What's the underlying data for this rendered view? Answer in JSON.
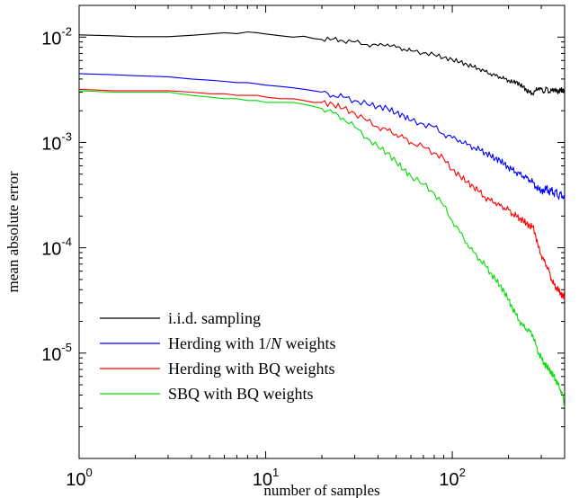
{
  "chart_data": {
    "type": "line",
    "xlabel": "number of samples",
    "ylabel": "mean absolute error",
    "x_scale": "log",
    "y_scale": "log",
    "xlim": [
      1,
      400
    ],
    "ylim": [
      1e-06,
      0.02
    ],
    "grid": false,
    "legend_position": "bottom-left",
    "x_ticks": [
      {
        "value": 1,
        "base": "10",
        "exp": "0"
      },
      {
        "value": 10,
        "base": "10",
        "exp": "1"
      },
      {
        "value": 100,
        "base": "10",
        "exp": "2"
      }
    ],
    "y_ticks": [
      {
        "value": 1e-05,
        "base": "10",
        "exp": "-5"
      },
      {
        "value": 0.0001,
        "base": "10",
        "exp": "-4"
      },
      {
        "value": 0.001,
        "base": "10",
        "exp": "-3"
      },
      {
        "value": 0.01,
        "base": "10",
        "exp": "-2"
      }
    ],
    "series": [
      {
        "name": "i.i.d. sampling",
        "color": "#000000",
        "x": [
          1,
          1.5,
          2,
          3,
          4,
          5,
          6,
          7,
          8,
          9,
          10,
          12,
          14,
          16,
          18,
          20,
          23,
          26,
          30,
          35,
          40,
          45,
          50,
          55,
          60,
          70,
          80,
          90,
          100,
          110,
          120,
          130,
          140,
          150,
          160,
          170,
          180,
          190,
          200,
          210,
          220,
          230,
          240,
          250,
          260,
          270,
          280,
          290,
          300,
          310,
          320,
          330,
          340,
          350,
          360,
          370,
          380,
          390,
          400
        ],
        "y": [
          0.0105,
          0.0103,
          0.0101,
          0.0101,
          0.0104,
          0.0107,
          0.011,
          0.0108,
          0.0112,
          0.011,
          0.0107,
          0.0103,
          0.01,
          0.0102,
          0.0097,
          0.0095,
          0.0096,
          0.0092,
          0.009,
          0.0085,
          0.0083,
          0.0086,
          0.008,
          0.0077,
          0.0074,
          0.0071,
          0.0068,
          0.0064,
          0.0061,
          0.0058,
          0.0055,
          0.0052,
          0.005,
          0.0047,
          0.0045,
          0.0043,
          0.0042,
          0.004,
          0.0039,
          0.0037,
          0.0038,
          0.0035,
          0.0034,
          0.0031,
          0.003,
          0.0029,
          0.0031,
          0.0033,
          0.0032,
          0.003,
          0.0033,
          0.003,
          0.0031,
          0.0032,
          0.0031,
          0.003,
          0.0032,
          0.0031,
          0.0031
        ]
      },
      {
        "name": "Herding with 1/N weights",
        "color": "#0000ff",
        "x": [
          1,
          1.5,
          2,
          3,
          4,
          5,
          6,
          7,
          8,
          9,
          10,
          12,
          14,
          16,
          18,
          20,
          23,
          26,
          30,
          35,
          40,
          45,
          50,
          55,
          60,
          70,
          80,
          90,
          100,
          110,
          120,
          130,
          140,
          150,
          160,
          170,
          180,
          190,
          200,
          210,
          220,
          230,
          240,
          250,
          260,
          270,
          280,
          290,
          300,
          310,
          320,
          330,
          340,
          350,
          360,
          370,
          380,
          390,
          400
        ],
        "y": [
          0.0045,
          0.0044,
          0.0043,
          0.0042,
          0.004,
          0.0039,
          0.0038,
          0.0037,
          0.0037,
          0.0036,
          0.0035,
          0.0034,
          0.0033,
          0.0032,
          0.0031,
          0.003,
          0.0028,
          0.0027,
          0.0025,
          0.0023,
          0.0022,
          0.0021,
          0.0019,
          0.0018,
          0.0016,
          0.0015,
          0.0014,
          0.0012,
          0.0011,
          0.00105,
          0.00095,
          0.0009,
          0.00085,
          0.0008,
          0.00075,
          0.0007,
          0.00068,
          0.00062,
          0.00058,
          0.00055,
          0.00052,
          0.0005,
          0.00048,
          0.00046,
          0.00044,
          0.00042,
          0.00038,
          0.00036,
          0.00035,
          0.00034,
          0.00038,
          0.00033,
          0.00036,
          0.00032,
          0.00035,
          0.0003,
          0.00033,
          0.00031,
          0.00029
        ]
      },
      {
        "name": "Herding with BQ weights",
        "color": "#ff0000",
        "x": [
          1,
          1.5,
          2,
          3,
          4,
          5,
          6,
          7,
          8,
          9,
          10,
          12,
          14,
          16,
          18,
          20,
          23,
          26,
          30,
          35,
          40,
          45,
          50,
          55,
          60,
          70,
          80,
          90,
          100,
          110,
          120,
          130,
          140,
          150,
          160,
          170,
          180,
          190,
          200,
          210,
          220,
          230,
          240,
          250,
          260,
          270,
          280,
          290,
          300,
          310,
          320,
          330,
          340,
          350,
          360,
          370,
          380,
          390,
          400
        ],
        "y": [
          0.0032,
          0.0031,
          0.0031,
          0.0031,
          0.003,
          0.0029,
          0.0029,
          0.0028,
          0.0028,
          0.0028,
          0.0027,
          0.0026,
          0.0026,
          0.0025,
          0.0024,
          0.0024,
          0.0023,
          0.0021,
          0.0019,
          0.0016,
          0.0014,
          0.0013,
          0.0012,
          0.0011,
          0.001,
          0.0009,
          0.0008,
          0.0007,
          0.00055,
          0.00048,
          0.00042,
          0.00038,
          0.00034,
          0.0003,
          0.00028,
          0.00027,
          0.00025,
          0.00024,
          0.00023,
          0.00021,
          0.0002,
          0.00019,
          0.00018,
          0.00017,
          0.00016,
          0.00016,
          0.00013,
          0.0001,
          8.5e-05,
          7.5e-05,
          6.8e-05,
          6e-05,
          5e-05,
          4.5e-05,
          4.2e-05,
          4e-05,
          3.7e-05,
          3.5e-05,
          3.4e-05
        ]
      },
      {
        "name": "SBQ with BQ weights",
        "color": "#00dd00",
        "x": [
          1,
          1.5,
          2,
          3,
          4,
          5,
          6,
          7,
          8,
          9,
          10,
          12,
          14,
          16,
          18,
          20,
          23,
          26,
          30,
          35,
          40,
          45,
          50,
          55,
          60,
          70,
          80,
          90,
          100,
          110,
          120,
          130,
          140,
          150,
          160,
          170,
          180,
          190,
          200,
          210,
          220,
          230,
          240,
          250,
          260,
          270,
          280,
          290,
          300,
          310,
          320,
          330,
          340,
          350,
          360,
          370,
          380,
          390,
          400
        ],
        "y": [
          0.0031,
          0.003,
          0.003,
          0.003,
          0.0028,
          0.0027,
          0.0026,
          0.0026,
          0.0025,
          0.0025,
          0.0024,
          0.0024,
          0.0024,
          0.0023,
          0.0022,
          0.0021,
          0.0019,
          0.0017,
          0.0014,
          0.0011,
          0.0009,
          0.0008,
          0.00065,
          0.00055,
          0.00048,
          0.0004,
          0.00033,
          0.00025,
          0.00018,
          0.00014,
          0.00011,
          9e-05,
          7.8e-05,
          6.8e-05,
          5.8e-05,
          5e-05,
          4.4e-05,
          3.8e-05,
          3.2e-05,
          2.7e-05,
          2.3e-05,
          2e-05,
          1.8e-05,
          1.7e-05,
          1.6e-05,
          1.5e-05,
          1.2e-05,
          1e-05,
          9e-06,
          8e-06,
          7.5e-06,
          7e-06,
          6.5e-06,
          6e-06,
          5.5e-06,
          5e-06,
          4.5e-06,
          4e-06,
          3.1e-06
        ]
      }
    ]
  },
  "legend": {
    "entries": [
      {
        "text": "i.i.d. sampling"
      },
      {
        "text": "Herding with 1/N weights",
        "pre": "Herding with 1/",
        "italic": "N",
        "post": " weights"
      },
      {
        "text": "Herding with BQ weights"
      },
      {
        "text": "SBQ with BQ weights"
      }
    ]
  }
}
